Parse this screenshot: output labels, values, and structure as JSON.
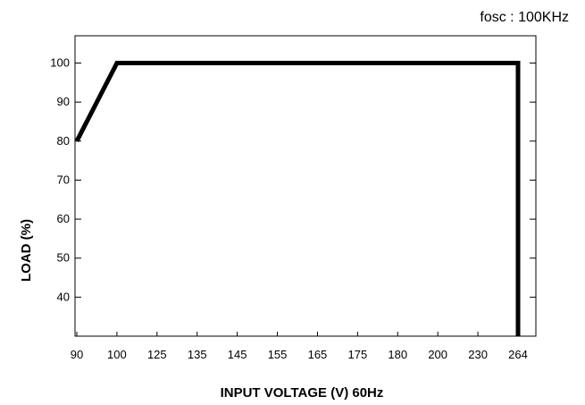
{
  "chart_data": {
    "type": "line",
    "title": "",
    "annotation": "fosc : 100KHz",
    "xlabel": "INPUT VOLTAGE (V) 60Hz",
    "ylabel": "LOAD (%)",
    "x_categories": [
      "90",
      "100",
      "125",
      "135",
      "145",
      "155",
      "165",
      "175",
      "180",
      "200",
      "230",
      "264"
    ],
    "y_ticks": [
      40,
      50,
      60,
      70,
      80,
      90,
      100
    ],
    "ylim": [
      30,
      107
    ],
    "grid": false,
    "legend": "none",
    "series": [
      {
        "x": [
          "90",
          "100",
          "264",
          "264"
        ],
        "y": [
          80,
          100,
          100,
          30
        ]
      }
    ],
    "line_color": "#000000"
  }
}
